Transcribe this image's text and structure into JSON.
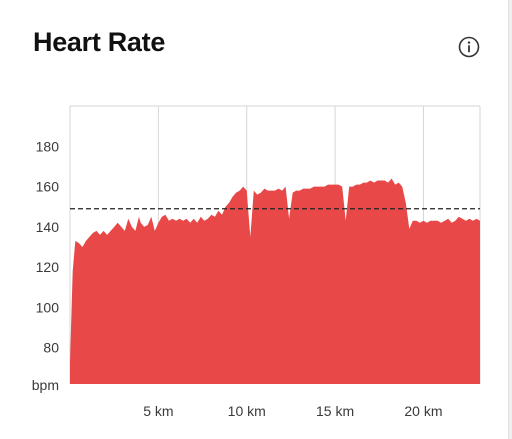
{
  "header": {
    "title": "Heart Rate",
    "info_icon": "info-circle-icon"
  },
  "colors": {
    "fill": "#e94848",
    "grid": "#d6d6d6",
    "axis_text": "#3a3a3a",
    "reference_line": "#222222"
  },
  "chart_data": {
    "type": "area",
    "title": "Heart Rate",
    "xlabel": "",
    "ylabel": "bpm",
    "y_ticks": [
      80,
      100,
      120,
      140,
      160,
      180
    ],
    "y_tick_labels": [
      "80",
      "100",
      "120",
      "140",
      "160",
      "180"
    ],
    "x_ticks": [
      5,
      10,
      15,
      20
    ],
    "x_tick_labels": [
      "5 km",
      "10 km",
      "15 km",
      "20 km"
    ],
    "xlim": [
      0,
      23.2
    ],
    "ylim": [
      62,
      200
    ],
    "grid": true,
    "reference_line": 149,
    "series": [
      {
        "x": [
          0,
          0.15,
          0.3,
          0.5,
          0.7,
          0.9,
          1.1,
          1.3,
          1.5,
          1.7,
          1.9,
          2.1,
          2.3,
          2.5,
          2.7,
          2.9,
          3.1,
          3.3,
          3.5,
          3.7,
          3.9,
          4.0,
          4.2,
          4.4,
          4.6,
          4.8,
          5.0,
          5.2,
          5.4,
          5.6,
          5.8,
          6.0,
          6.2,
          6.4,
          6.6,
          6.8,
          7.0,
          7.2,
          7.4,
          7.6,
          7.8,
          8.0,
          8.2,
          8.4,
          8.6,
          8.8,
          9.0,
          9.2,
          9.4,
          9.6,
          9.8,
          10.0,
          10.2,
          10.4,
          10.6,
          10.8,
          11.0,
          11.2,
          11.4,
          11.6,
          11.8,
          12.0,
          12.2,
          12.4,
          12.6,
          12.8,
          13.0,
          13.2,
          13.4,
          13.6,
          13.8,
          14.0,
          14.2,
          14.4,
          14.6,
          14.8,
          15.0,
          15.2,
          15.4,
          15.6,
          15.8,
          16.0,
          16.2,
          16.4,
          16.6,
          16.8,
          17.0,
          17.2,
          17.4,
          17.6,
          17.8,
          18.0,
          18.2,
          18.4,
          18.6,
          18.8,
          19.0,
          19.2,
          19.4,
          19.6,
          19.8,
          20.0,
          20.2,
          20.4,
          20.6,
          20.8,
          21.0,
          21.2,
          21.4,
          21.6,
          21.8,
          22.0,
          22.2,
          22.4,
          22.6,
          22.8,
          23.0,
          23.2
        ],
        "values": [
          73,
          118,
          133,
          132,
          130,
          133,
          135,
          137,
          138,
          136,
          138,
          136,
          138,
          140,
          142,
          140,
          138,
          144,
          140,
          138,
          145,
          142,
          140,
          141,
          145,
          138,
          142,
          145,
          146,
          143,
          144,
          143,
          144,
          143,
          144,
          142,
          144,
          142,
          145,
          143,
          144,
          146,
          145,
          148,
          146,
          150,
          152,
          155,
          157,
          158,
          160,
          158,
          135,
          158,
          156,
          157,
          159,
          158,
          158,
          158,
          159,
          158,
          160,
          144,
          157,
          158,
          158,
          159,
          159,
          159,
          160,
          160,
          160,
          160,
          161,
          161,
          161,
          161,
          160,
          143,
          160,
          160,
          161,
          161,
          162,
          162,
          163,
          162,
          163,
          163,
          163,
          162,
          164,
          161,
          162,
          160,
          152,
          139,
          143,
          143,
          142,
          143,
          142,
          143,
          143,
          143,
          142,
          143,
          144,
          142,
          143,
          145,
          144,
          143,
          144,
          143,
          144,
          143
        ]
      }
    ]
  }
}
